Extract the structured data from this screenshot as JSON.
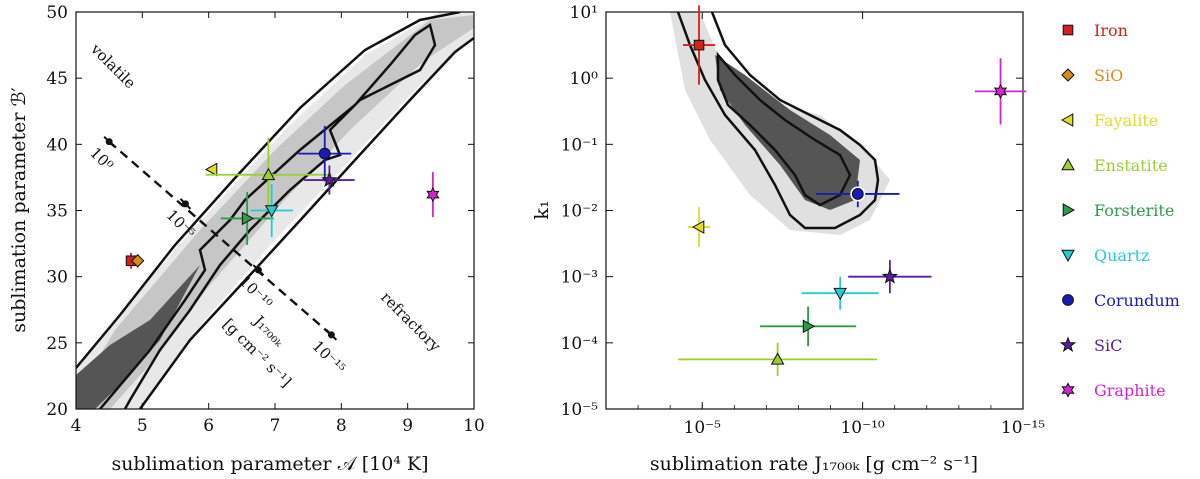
{
  "chart_data": [
    {
      "type": "scatter",
      "panel": "left",
      "xlabel": "sublimation parameter 𝒜 [10⁴ K]",
      "ylabel": "sublimation parameter ℬ′",
      "xlim": [
        4,
        10
      ],
      "ylim": [
        20,
        50
      ],
      "xticks": [
        "4",
        "5",
        "6",
        "7",
        "8",
        "9",
        "10"
      ],
      "yticks": [
        "20",
        "25",
        "30",
        "35",
        "40",
        "45",
        "50"
      ],
      "annotations": {
        "volatile": "volatile",
        "refractory": "refractory"
      },
      "rate_line": {
        "label_name": "J₁₇₀₀ₖ",
        "label_units": "[g cm⁻² s⁻¹]",
        "markers": [
          {
            "A": 4.5,
            "B": 40.2,
            "label": "10⁰"
          },
          {
            "A": 5.65,
            "B": 35.5,
            "label": "10⁻⁵"
          },
          {
            "A": 6.75,
            "B": 30.5,
            "label": "10⁻¹⁰"
          },
          {
            "A": 7.85,
            "B": 25.6,
            "label": "10⁻¹⁵"
          }
        ]
      },
      "points": [
        {
          "name": "Iron",
          "A": 4.83,
          "B": 31.2,
          "xerr": 0.06,
          "yerr": 0.6
        },
        {
          "name": "SiO",
          "A": 4.93,
          "B": 31.2,
          "xerr": 0.05,
          "yerr": 0.5
        },
        {
          "name": "Fayalite",
          "A": 6.05,
          "B": 38.1,
          "xerr": 0.0,
          "yerr": 0.0
        },
        {
          "name": "Enstatite",
          "A": 6.9,
          "B": 37.7,
          "xerr": 0.95,
          "yerr": 2.8
        },
        {
          "name": "Forsterite",
          "A": 6.58,
          "B": 34.4,
          "xerr": 0.4,
          "yerr": 2.0
        },
        {
          "name": "Quartz",
          "A": 6.95,
          "B": 35.0,
          "xerr": 0.32,
          "yerr": 2.0
        },
        {
          "name": "Corundum",
          "A": 7.75,
          "B": 39.3,
          "xerr": 0.4,
          "yerr": 2.1
        },
        {
          "name": "SiC",
          "A": 7.82,
          "B": 37.3,
          "xerr": 0.38,
          "yerr": 1.1
        },
        {
          "name": "Graphite",
          "A": 9.38,
          "B": 36.2,
          "xerr": 0.0,
          "yerr": 1.7
        }
      ]
    },
    {
      "type": "scatter",
      "panel": "right",
      "xlabel": "sublimation rate J₁₇₀₀ₖ [g cm⁻² s⁻¹]",
      "ylabel": "k₁",
      "xscale": "log",
      "yscale": "log",
      "xlim_log10": [
        -2,
        -15
      ],
      "ylim_log10": [
        -5,
        1
      ],
      "xticks": [
        "10⁻⁵",
        "10⁻¹⁰",
        "10⁻¹⁵"
      ],
      "yticks": [
        "10⁻⁵",
        "10⁻⁴",
        "10⁻³",
        "10⁻²",
        "10⁻¹",
        "10⁰",
        "10¹"
      ],
      "points": [
        {
          "name": "Iron",
          "log10_J": -4.9,
          "log10_k1": 0.5,
          "xerr": 0.5,
          "yerr": 0.6
        },
        {
          "name": "Fayalite",
          "log10_J": -4.9,
          "log10_k1": -2.25,
          "xerr": 0.35,
          "yerr": 0.3
        },
        {
          "name": "Enstatite",
          "log10_J": -7.35,
          "log10_k1": -4.25,
          "xerr": 3.1,
          "yerr": 0.25
        },
        {
          "name": "Forsterite",
          "log10_J": -8.3,
          "log10_k1": -3.75,
          "xerr": 1.5,
          "yerr": 0.3
        },
        {
          "name": "Quartz",
          "log10_J": -9.3,
          "log10_k1": -3.25,
          "xerr": 1.2,
          "yerr": 0.25
        },
        {
          "name": "Corundum",
          "log10_J": -9.85,
          "log10_k1": -1.75,
          "xerr": 1.3,
          "yerr": 0.2
        },
        {
          "name": "SiC",
          "log10_J": -10.85,
          "log10_k1": -3.0,
          "xerr": 1.3,
          "yerr": 0.25
        },
        {
          "name": "Graphite",
          "log10_J": -14.3,
          "log10_k1": -0.2,
          "xerr": 0.8,
          "yerr": 0.5
        }
      ]
    }
  ],
  "legend": [
    {
      "name": "Iron",
      "marker": "square",
      "color": "#d61f1f"
    },
    {
      "name": "SiO",
      "marker": "diamond",
      "color": "#d98a1e"
    },
    {
      "name": "Fayalite",
      "marker": "triangle-left",
      "color": "#e1dc2a"
    },
    {
      "name": "Enstatite",
      "marker": "triangle-up",
      "color": "#9bce2e"
    },
    {
      "name": "Forsterite",
      "marker": "triangle-right",
      "color": "#2e9b4a"
    },
    {
      "name": "Quartz",
      "marker": "triangle-down",
      "color": "#25cdd2"
    },
    {
      "name": "Corundum",
      "marker": "circle",
      "color": "#1a1ab8"
    },
    {
      "name": "SiC",
      "marker": "star",
      "color": "#5a1e9e"
    },
    {
      "name": "Graphite",
      "marker": "star6",
      "color": "#d224d2"
    }
  ]
}
